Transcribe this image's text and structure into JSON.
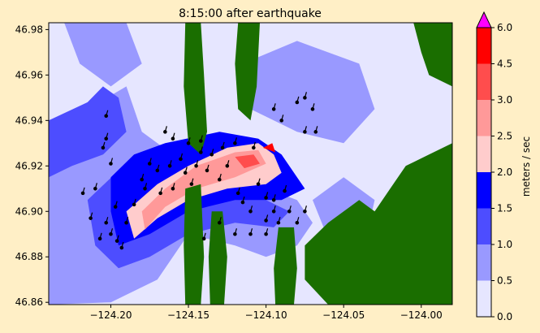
{
  "chart_data": {
    "type": "heatmap",
    "title": "8:15:00 after earthquake",
    "xlim": [
      -124.24,
      -123.98
    ],
    "ylim": [
      46.859,
      46.983
    ],
    "x_ticks": [
      -124.2,
      -124.15,
      -124.1,
      -124.05,
      -124.0
    ],
    "y_ticks": [
      46.86,
      46.88,
      46.9,
      46.92,
      46.94,
      46.96,
      46.98
    ],
    "x_tick_labels": [
      "−124.20",
      "−124.15",
      "−124.10",
      "−124.05",
      "−124.00"
    ],
    "y_tick_labels": [
      "46.86",
      "46.88",
      "46.90",
      "46.92",
      "46.94",
      "46.96",
      "46.98"
    ],
    "colorbar": {
      "label": "meters / sec",
      "levels": [
        0.0,
        0.5,
        1.0,
        1.5,
        2.0,
        2.5,
        3.0,
        4.5,
        6.0
      ],
      "level_labels": [
        "0.0",
        "0.5",
        "1.0",
        "1.5",
        "2.0",
        "2.5",
        "3.0",
        "4.5",
        "6.0"
      ],
      "colors": [
        "#e6e6ff",
        "#9999ff",
        "#4d4dff",
        "#0000ff",
        "#ffcccc",
        "#ff9999",
        "#ff4d4d",
        "#ff0000"
      ],
      "extend_color": "#ff00ff",
      "grid": false
    },
    "land_color": "#1a6e00",
    "speed_regions": [
      {
        "level": 0,
        "points": [
          [
            -124.24,
            46.983
          ],
          [
            -123.98,
            46.983
          ],
          [
            -123.98,
            46.859
          ],
          [
            -124.24,
            46.859
          ]
        ]
      },
      {
        "level": 1,
        "points": [
          [
            -124.24,
            46.925
          ],
          [
            -124.215,
            46.945
          ],
          [
            -124.19,
            46.955
          ],
          [
            -124.18,
            46.935
          ],
          [
            -124.16,
            46.925
          ],
          [
            -124.13,
            46.915
          ],
          [
            -124.1,
            46.91
          ],
          [
            -124.08,
            46.905
          ],
          [
            -124.07,
            46.895
          ],
          [
            -124.08,
            46.885
          ],
          [
            -124.1,
            46.88
          ],
          [
            -124.12,
            46.885
          ],
          [
            -124.15,
            46.89
          ],
          [
            -124.17,
            46.87
          ],
          [
            -124.2,
            46.86
          ],
          [
            -124.24,
            46.859
          ]
        ]
      },
      {
        "level": 1,
        "points": [
          [
            -124.23,
            46.983
          ],
          [
            -124.19,
            46.983
          ],
          [
            -124.18,
            46.965
          ],
          [
            -124.2,
            46.955
          ],
          [
            -124.22,
            46.965
          ]
        ]
      },
      {
        "level": 1,
        "points": [
          [
            -124.115,
            46.965
          ],
          [
            -124.08,
            46.975
          ],
          [
            -124.04,
            46.965
          ],
          [
            -124.03,
            46.945
          ],
          [
            -124.05,
            46.93
          ],
          [
            -124.08,
            46.935
          ],
          [
            -124.11,
            46.945
          ]
        ]
      },
      {
        "level": 1,
        "points": [
          [
            -124.07,
            46.905
          ],
          [
            -124.05,
            46.915
          ],
          [
            -124.03,
            46.905
          ],
          [
            -124.035,
            46.89
          ],
          [
            -124.06,
            46.888
          ]
        ]
      },
      {
        "level": 1,
        "points": [
          [
            -124.0,
            46.983
          ],
          [
            -123.98,
            46.983
          ],
          [
            -123.98,
            46.965
          ],
          [
            -123.99,
            46.97
          ]
        ]
      },
      {
        "level": 2,
        "points": [
          [
            -124.24,
            46.94
          ],
          [
            -124.215,
            46.948
          ],
          [
            -124.205,
            46.955
          ],
          [
            -124.195,
            46.95
          ],
          [
            -124.19,
            46.935
          ],
          [
            -124.205,
            46.925
          ],
          [
            -124.225,
            46.92
          ],
          [
            -124.24,
            46.915
          ]
        ]
      },
      {
        "level": 2,
        "points": [
          [
            -124.215,
            46.905
          ],
          [
            -124.195,
            46.918
          ],
          [
            -124.175,
            46.92
          ],
          [
            -124.15,
            46.918
          ],
          [
            -124.12,
            46.912
          ],
          [
            -124.1,
            46.905
          ],
          [
            -124.085,
            46.9
          ],
          [
            -124.095,
            46.893
          ],
          [
            -124.12,
            46.895
          ],
          [
            -124.15,
            46.89
          ],
          [
            -124.175,
            46.88
          ],
          [
            -124.195,
            46.875
          ],
          [
            -124.21,
            46.885
          ]
        ]
      },
      {
        "level": 3,
        "points": [
          [
            -124.2,
            46.915
          ],
          [
            -124.185,
            46.925
          ],
          [
            -124.165,
            46.93
          ],
          [
            -124.13,
            46.935
          ],
          [
            -124.105,
            46.932
          ],
          [
            -124.09,
            46.925
          ],
          [
            -124.075,
            46.91
          ],
          [
            -124.09,
            46.905
          ],
          [
            -124.12,
            46.905
          ],
          [
            -124.15,
            46.9
          ],
          [
            -124.175,
            46.89
          ],
          [
            -124.195,
            46.885
          ],
          [
            -124.2,
            46.9
          ]
        ]
      },
      {
        "level": 4,
        "points": [
          [
            -124.19,
            46.9
          ],
          [
            -124.17,
            46.912
          ],
          [
            -124.15,
            46.92
          ],
          [
            -124.125,
            46.928
          ],
          [
            -124.105,
            46.93
          ],
          [
            -124.095,
            46.925
          ],
          [
            -124.09,
            46.917
          ],
          [
            -124.1,
            46.912
          ],
          [
            -124.125,
            46.91
          ],
          [
            -124.15,
            46.905
          ],
          [
            -124.17,
            46.897
          ],
          [
            -124.185,
            46.888
          ]
        ]
      },
      {
        "level": 5,
        "points": [
          [
            -124.18,
            46.9
          ],
          [
            -124.165,
            46.91
          ],
          [
            -124.145,
            46.92
          ],
          [
            -124.12,
            46.926
          ],
          [
            -124.105,
            46.927
          ],
          [
            -124.1,
            46.921
          ],
          [
            -124.12,
            46.915
          ],
          [
            -124.145,
            46.91
          ],
          [
            -124.165,
            46.902
          ],
          [
            -124.178,
            46.892
          ]
        ]
      },
      {
        "level": 6,
        "points": [
          [
            -124.12,
            46.924
          ],
          [
            -124.108,
            46.925
          ],
          [
            -124.104,
            46.921
          ],
          [
            -124.114,
            46.919
          ]
        ]
      },
      {
        "level": 7,
        "points": [
          [
            -124.102,
            46.928
          ],
          [
            -124.096,
            46.93
          ],
          [
            -124.094,
            46.926
          ]
        ]
      }
    ],
    "land_regions": [
      {
        "points": [
          [
            -124.152,
            46.983
          ],
          [
            -124.142,
            46.983
          ],
          [
            -124.14,
            46.96
          ],
          [
            -124.138,
            46.935
          ],
          [
            -124.142,
            46.925
          ],
          [
            -124.15,
            46.93
          ],
          [
            -124.153,
            46.955
          ]
        ]
      },
      {
        "points": [
          [
            -124.152,
            46.91
          ],
          [
            -124.142,
            46.912
          ],
          [
            -124.14,
            46.88
          ],
          [
            -124.142,
            46.859
          ],
          [
            -124.152,
            46.859
          ],
          [
            -124.153,
            46.885
          ]
        ]
      },
      {
        "points": [
          [
            -124.135,
            46.9
          ],
          [
            -124.128,
            46.9
          ],
          [
            -124.125,
            46.88
          ],
          [
            -124.127,
            46.859
          ],
          [
            -124.136,
            46.859
          ],
          [
            -124.137,
            46.88
          ]
        ]
      },
      {
        "points": [
          [
            -124.118,
            46.983
          ],
          [
            -124.104,
            46.983
          ],
          [
            -124.106,
            46.955
          ],
          [
            -124.11,
            46.94
          ],
          [
            -124.118,
            46.945
          ],
          [
            -124.12,
            46.965
          ]
        ]
      },
      {
        "points": [
          [
            -124.092,
            46.893
          ],
          [
            -124.082,
            46.893
          ],
          [
            -124.08,
            46.875
          ],
          [
            -124.082,
            46.859
          ],
          [
            -124.094,
            46.859
          ],
          [
            -124.095,
            46.875
          ]
        ]
      },
      {
        "points": [
          [
            -124.06,
            46.895
          ],
          [
            -124.04,
            46.905
          ],
          [
            -124.03,
            46.9
          ],
          [
            -124.02,
            46.91
          ],
          [
            -124.01,
            46.92
          ],
          [
            -123.995,
            46.925
          ],
          [
            -123.98,
            46.93
          ],
          [
            -123.98,
            46.859
          ],
          [
            -124.06,
            46.859
          ],
          [
            -124.075,
            46.87
          ],
          [
            -124.075,
            46.885
          ]
        ]
      },
      {
        "points": [
          [
            -124.005,
            46.983
          ],
          [
            -123.98,
            46.983
          ],
          [
            -123.98,
            46.955
          ],
          [
            -123.995,
            46.96
          ],
          [
            -124.0,
            46.97
          ]
        ]
      }
    ],
    "drifters": [
      [
        -124.218,
        46.908
      ],
      [
        -124.213,
        46.897
      ],
      [
        -124.21,
        46.91
      ],
      [
        -124.205,
        46.928
      ],
      [
        -124.203,
        46.942
      ],
      [
        -124.203,
        46.932
      ],
      [
        -124.2,
        46.921
      ],
      [
        -124.207,
        46.888
      ],
      [
        -124.203,
        46.895
      ],
      [
        -124.197,
        46.902
      ],
      [
        -124.196,
        46.887
      ],
      [
        -124.193,
        46.884
      ],
      [
        -124.19,
        46.895
      ],
      [
        -124.185,
        46.903
      ],
      [
        -124.18,
        46.914
      ],
      [
        -124.178,
        46.91
      ],
      [
        -124.175,
        46.921
      ],
      [
        -124.17,
        46.918
      ],
      [
        -124.168,
        46.908
      ],
      [
        -124.162,
        46.92
      ],
      [
        -124.16,
        46.91
      ],
      [
        -124.155,
        46.923
      ],
      [
        -124.152,
        46.917
      ],
      [
        -124.148,
        46.912
      ],
      [
        -124.145,
        46.92
      ],
      [
        -124.142,
        46.926
      ],
      [
        -124.138,
        46.918
      ],
      [
        -124.135,
        46.925
      ],
      [
        -124.13,
        46.914
      ],
      [
        -124.128,
        46.928
      ],
      [
        -124.125,
        46.92
      ],
      [
        -124.12,
        46.93
      ],
      [
        -124.118,
        46.908
      ],
      [
        -124.115,
        46.904
      ],
      [
        -124.11,
        46.9
      ],
      [
        -124.108,
        46.928
      ],
      [
        -124.105,
        46.912
      ],
      [
        -124.1,
        46.906
      ],
      [
        -124.1,
        46.896
      ],
      [
        -124.095,
        46.905
      ],
      [
        -124.092,
        46.895
      ],
      [
        -124.088,
        46.909
      ],
      [
        -124.085,
        46.9
      ],
      [
        -124.08,
        46.895
      ],
      [
        -124.075,
        46.9
      ],
      [
        -124.095,
        46.945
      ],
      [
        -124.09,
        46.94
      ],
      [
        -124.08,
        46.948
      ],
      [
        -124.075,
        46.95
      ],
      [
        -124.075,
        46.935
      ],
      [
        -124.07,
        46.945
      ],
      [
        -124.068,
        46.935
      ],
      [
        -124.165,
        46.935
      ],
      [
        -124.16,
        46.932
      ],
      [
        -124.15,
        46.93
      ],
      [
        -124.142,
        46.931
      ],
      [
        -124.14,
        46.888
      ],
      [
        -124.13,
        46.895
      ],
      [
        -124.12,
        46.89
      ],
      [
        -124.11,
        46.89
      ],
      [
        -124.1,
        46.89
      ],
      [
        -124.095,
        46.9
      ],
      [
        -124.2,
        46.89
      ]
    ]
  }
}
